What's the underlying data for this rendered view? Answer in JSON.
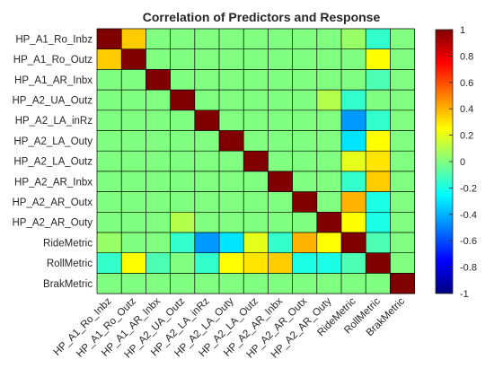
{
  "chart_data": {
    "type": "heatmap",
    "title": "Correlation of Predictors and Response",
    "labels": [
      "HP_A1_Ro_Inbz",
      "HP_A1_Ro_Outz",
      "HP_A1_AR_Inbx",
      "HP_A2_UA_Outz",
      "HP_A2_LA_inRz",
      "HP_A2_LA_Outy",
      "HP_A2_LA_Outz",
      "HP_A2_AR_Inbx",
      "HP_A2_AR_Outx",
      "HP_A2_AR_Outy",
      "RideMetric",
      "RollMetric",
      "BrakMetric"
    ],
    "matrix": [
      [
        1.0,
        0.35,
        0.0,
        0.0,
        0.0,
        0.0,
        0.0,
        0.0,
        0.0,
        0.0,
        0.05,
        -0.15,
        0.0
      ],
      [
        0.35,
        1.0,
        0.0,
        0.0,
        0.0,
        0.0,
        0.0,
        0.0,
        0.0,
        0.0,
        0.0,
        0.25,
        0.0
      ],
      [
        0.0,
        0.0,
        1.0,
        0.0,
        0.0,
        0.0,
        0.0,
        0.0,
        0.0,
        0.0,
        0.0,
        -0.1,
        0.0
      ],
      [
        0.0,
        0.0,
        0.0,
        1.0,
        0.0,
        0.0,
        0.0,
        0.0,
        0.0,
        0.1,
        -0.15,
        0.0,
        0.0
      ],
      [
        0.0,
        0.0,
        0.0,
        0.0,
        1.0,
        0.0,
        0.0,
        0.0,
        0.0,
        0.0,
        -0.45,
        -0.15,
        0.0
      ],
      [
        0.0,
        0.0,
        0.0,
        0.0,
        0.0,
        1.0,
        0.0,
        0.0,
        0.0,
        0.0,
        -0.3,
        0.25,
        0.0
      ],
      [
        0.0,
        0.0,
        0.0,
        0.0,
        0.0,
        0.0,
        1.0,
        0.0,
        0.0,
        0.0,
        0.2,
        0.3,
        0.0
      ],
      [
        0.0,
        0.0,
        0.0,
        0.0,
        0.0,
        0.0,
        0.0,
        1.0,
        0.0,
        0.0,
        -0.15,
        0.35,
        0.0
      ],
      [
        0.0,
        0.0,
        0.0,
        0.0,
        0.0,
        0.0,
        0.0,
        0.0,
        1.0,
        0.0,
        0.4,
        -0.2,
        0.0
      ],
      [
        0.0,
        0.0,
        0.0,
        0.1,
        0.0,
        0.0,
        0.0,
        0.0,
        0.0,
        1.0,
        0.25,
        -0.2,
        0.0
      ],
      [
        0.05,
        0.0,
        0.0,
        -0.15,
        -0.45,
        -0.3,
        0.2,
        -0.15,
        0.4,
        0.25,
        1.0,
        -0.1,
        0.0
      ],
      [
        -0.15,
        0.25,
        -0.1,
        0.0,
        -0.15,
        0.25,
        0.3,
        0.35,
        -0.2,
        -0.2,
        -0.1,
        1.0,
        0.0
      ],
      [
        0.0,
        0.0,
        0.0,
        0.0,
        0.0,
        0.0,
        0.0,
        0.0,
        0.0,
        0.0,
        0.0,
        0.0,
        1.0
      ]
    ],
    "colorbar": {
      "colormap": "jet",
      "range": [
        -1,
        1
      ],
      "ticks": [
        1,
        0.8,
        0.6,
        0.4,
        0.2,
        0,
        -0.2,
        -0.4,
        -0.6,
        -0.8,
        -1
      ]
    }
  }
}
